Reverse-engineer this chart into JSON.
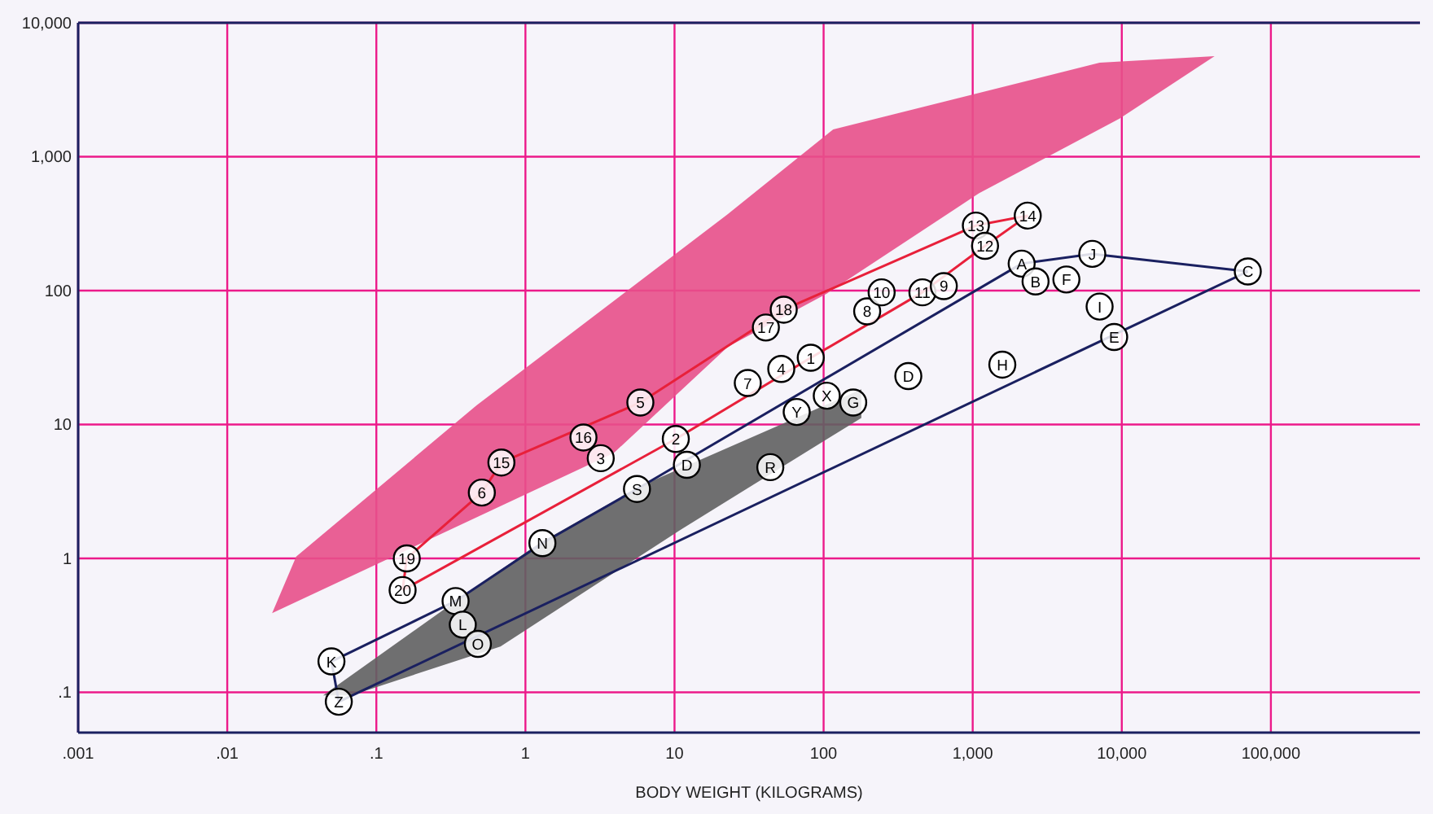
{
  "chart_data": {
    "type": "scatter",
    "xlabel": "BODY WEIGHT (KILOGRAMS)",
    "log": "xy",
    "grid": true,
    "xlim": [
      0.001,
      1000000
    ],
    "xticks": [
      {
        "value": 0.001,
        "label": ".001"
      },
      {
        "value": 0.01,
        "label": ".01"
      },
      {
        "value": 0.1,
        "label": ".1"
      },
      1,
      10,
      100,
      {
        "value": 1000,
        "label": "1,000"
      },
      {
        "value": 10000,
        "label": "10,000"
      },
      {
        "value": 100000,
        "label": "100,000"
      }
    ],
    "ylim": [
      0.05,
      10000
    ],
    "yticks": [
      {
        "value": 0.1,
        "label": ".1"
      },
      1,
      10,
      100,
      {
        "value": 1000,
        "label": "1,000"
      },
      {
        "value": 10000,
        "label": "10,000"
      }
    ],
    "series": [
      {
        "type": "area",
        "color": "#e8508a",
        "x": [
          0.02,
          0.029,
          0.47,
          22.8,
          116,
          7100,
          41900,
          9700,
          1100,
          105,
          22.8,
          3.9,
          0.02
        ],
        "values": [
          0.39,
          1.03,
          13.9,
          373,
          1600,
          5040,
          5630,
          1930,
          532,
          95,
          38,
          6.1,
          0.39
        ]
      },
      {
        "type": "area",
        "color": "#606060",
        "x": [
          0.044,
          0.35,
          1.24,
          6,
          179,
          179,
          11,
          0.68,
          0.068,
          0.044
        ],
        "values": [
          0.095,
          0.49,
          1.3,
          3.5,
          18.3,
          11.2,
          1.64,
          0.22,
          0.095,
          0.095
        ]
      },
      {
        "type": "line",
        "color": "#e8203a",
        "marker": "none",
        "line_style": "solid",
        "x": [
          0.15,
          0.16,
          0.51,
          0.69,
          5.9,
          54,
          1050,
          2340
        ],
        "values": [
          0.58,
          1.0,
          3.1,
          5.2,
          14.6,
          72,
          306,
          363
        ]
      },
      {
        "type": "line",
        "color": "#e8203a",
        "marker": "none",
        "line_style": "solid",
        "x": [
          0.15,
          10.2,
          82,
          460,
          1210,
          2340
        ],
        "values": [
          0.58,
          7.8,
          31.5,
          97,
          216,
          363
        ]
      },
      {
        "type": "line",
        "color": "#1a2060",
        "marker": "none",
        "line_style": "solid",
        "x": [
          0.05,
          0.34,
          1.3,
          5.6,
          2130,
          6340,
          70000
        ],
        "values": [
          0.17,
          0.48,
          1.3,
          3.3,
          159,
          188,
          139
        ]
      },
      {
        "type": "line",
        "color": "#1a2060",
        "marker": "none",
        "line_style": "solid",
        "x": [
          0.05,
          0.056,
          70000
        ],
        "values": [
          0.17,
          0.085,
          139
        ]
      },
      {
        "color": "#000000",
        "marker": "circle",
        "x": [
          0.05,
          0.056,
          0.34,
          0.38,
          0.48,
          1.3,
          0.16,
          0.15,
          0.51,
          0.69,
          5.9,
          2.45,
          3.2,
          10.2,
          5.6,
          12.1,
          43.9,
          31,
          52,
          82,
          66,
          105,
          158,
          41,
          54,
          196,
          245,
          460,
          640,
          370,
          1580,
          1050,
          1210,
          2340,
          2130,
          2640,
          4250,
          6340,
          7100,
          8890,
          70000
        ],
        "values": [
          0.17,
          0.085,
          0.48,
          0.32,
          0.23,
          1.3,
          1.0,
          0.58,
          3.1,
          5.2,
          14.6,
          8.0,
          5.6,
          7.8,
          3.3,
          5.0,
          4.8,
          20.4,
          26,
          31.5,
          12.4,
          16.4,
          14.6,
          53,
          72,
          70,
          97,
          97,
          108,
          23,
          28,
          306,
          216,
          363,
          159,
          117,
          121,
          188,
          76,
          45,
          139
        ]
      }
    ],
    "annotations": [
      {
        "text": "K",
        "x": 0.05,
        "y": 0.17
      },
      {
        "text": "Z",
        "x": 0.056,
        "y": 0.085
      },
      {
        "text": "M",
        "x": 0.34,
        "y": 0.48
      },
      {
        "text": "L",
        "x": 0.38,
        "y": 0.32
      },
      {
        "text": "O",
        "x": 0.48,
        "y": 0.23
      },
      {
        "text": "N",
        "x": 1.3,
        "y": 1.3
      },
      {
        "text": "19",
        "x": 0.16,
        "y": 1.0
      },
      {
        "text": "20",
        "x": 0.15,
        "y": 0.58
      },
      {
        "text": "6",
        "x": 0.51,
        "y": 3.1
      },
      {
        "text": "15",
        "x": 0.69,
        "y": 5.2
      },
      {
        "text": "5",
        "x": 5.9,
        "y": 14.6
      },
      {
        "text": "16",
        "x": 2.45,
        "y": 8.0
      },
      {
        "text": "3",
        "x": 3.2,
        "y": 5.6
      },
      {
        "text": "2",
        "x": 10.2,
        "y": 7.8
      },
      {
        "text": "S",
        "x": 5.6,
        "y": 3.3
      },
      {
        "text": "D",
        "x": 12.1,
        "y": 5.0
      },
      {
        "text": "R",
        "x": 43.9,
        "y": 4.8
      },
      {
        "text": "7",
        "x": 31,
        "y": 20.4
      },
      {
        "text": "4",
        "x": 52,
        "y": 26
      },
      {
        "text": "1",
        "x": 82,
        "y": 31.5
      },
      {
        "text": "Y",
        "x": 66,
        "y": 12.4
      },
      {
        "text": "X",
        "x": 105,
        "y": 16.4
      },
      {
        "text": "G",
        "x": 158,
        "y": 14.6
      },
      {
        "text": "17",
        "x": 41,
        "y": 53
      },
      {
        "text": "18",
        "x": 54,
        "y": 72
      },
      {
        "text": "8",
        "x": 196,
        "y": 70
      },
      {
        "text": "10",
        "x": 245,
        "y": 97
      },
      {
        "text": "11",
        "x": 460,
        "y": 97
      },
      {
        "text": "9",
        "x": 640,
        "y": 108
      },
      {
        "text": "D",
        "x": 370,
        "y": 23
      },
      {
        "text": "H",
        "x": 1580,
        "y": 28
      },
      {
        "text": "13",
        "x": 1050,
        "y": 306
      },
      {
        "text": "12",
        "x": 1210,
        "y": 216
      },
      {
        "text": "14",
        "x": 2340,
        "y": 363
      },
      {
        "text": "A",
        "x": 2130,
        "y": 159
      },
      {
        "text": "B",
        "x": 2640,
        "y": 117
      },
      {
        "text": "F",
        "x": 4250,
        "y": 121
      },
      {
        "text": "J",
        "x": 6340,
        "y": 188
      },
      {
        "text": "I",
        "x": 7100,
        "y": 76
      },
      {
        "text": "E",
        "x": 8890,
        "y": 45
      },
      {
        "text": "C",
        "x": 70000,
        "y": 139
      }
    ]
  }
}
